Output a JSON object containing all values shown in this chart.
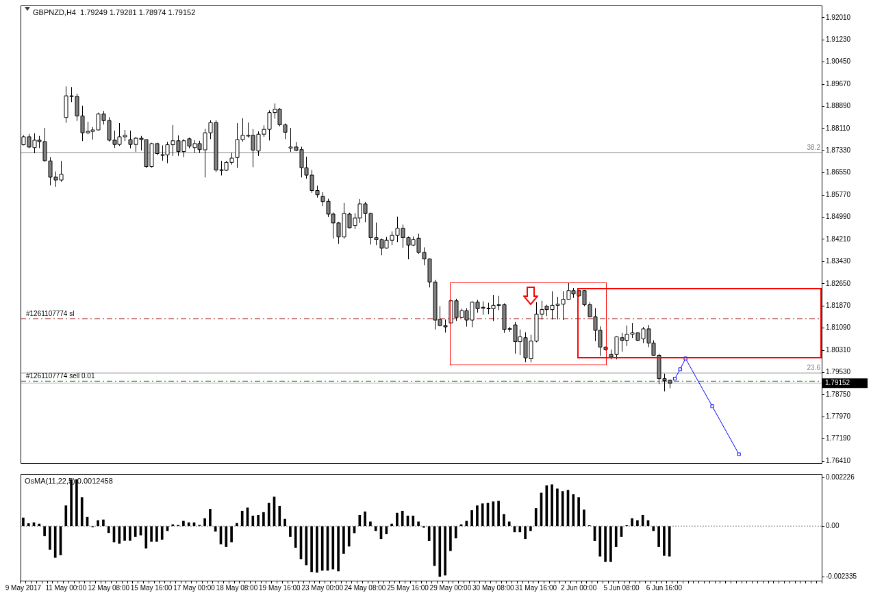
{
  "chart_data": [
    {
      "type": "candlestick",
      "title": "GBPNZD,H4  1.79249 1.79281 1.78974 1.79152",
      "categories": [
        null,
        null,
        null,
        null,
        null,
        null,
        null,
        null,
        null,
        null,
        null,
        null,
        null,
        null,
        null,
        null,
        null,
        null,
        null,
        null,
        null,
        null,
        null,
        null,
        null,
        null,
        null,
        null,
        null,
        null,
        null,
        null,
        null,
        null,
        null,
        null,
        null,
        null,
        null,
        null,
        null,
        null,
        null,
        null,
        null,
        null,
        null,
        null,
        null,
        null,
        null,
        null,
        null,
        null,
        null,
        null,
        null,
        null,
        null,
        null,
        null,
        null,
        null,
        null,
        null,
        null,
        null,
        null,
        null,
        null,
        null,
        null,
        null,
        null,
        null,
        null,
        null,
        null,
        null,
        null,
        null,
        null,
        null,
        null,
        null,
        null,
        null,
        null,
        null,
        null,
        null,
        null,
        null,
        null,
        null,
        null,
        null,
        null,
        null,
        null,
        null,
        null,
        null,
        null,
        null,
        null,
        null,
        null,
        null,
        null,
        null,
        null,
        null,
        null,
        null,
        null,
        null,
        null,
        null,
        null,
        null,
        null,
        null,
        null,
        null,
        null,
        null,
        null,
        null,
        null,
        null,
        null,
        null,
        null,
        null,
        null,
        null,
        null,
        null,
        null,
        null,
        null,
        null,
        null,
        null,
        null,
        null,
        null,
        null,
        null
      ],
      "ohlc": [
        [
          1.8754,
          1.8787,
          1.8752,
          1.8782
        ],
        [
          1.8782,
          1.8792,
          1.8742,
          1.8746
        ],
        [
          1.8744,
          1.8794,
          1.8724,
          1.877
        ],
        [
          1.877,
          1.8785,
          1.8742,
          1.8765
        ],
        [
          1.8765,
          1.8813,
          1.8694,
          1.8698
        ],
        [
          1.8697,
          1.871,
          1.8611,
          1.864
        ],
        [
          1.864,
          1.866,
          1.8606,
          1.863
        ],
        [
          1.863,
          1.8697,
          1.8624,
          1.865
        ],
        [
          1.885,
          1.8959,
          1.8831,
          1.8926
        ],
        [
          1.8926,
          1.8957,
          1.8904,
          1.8924
        ],
        [
          1.8924,
          1.8934,
          1.8838,
          1.8855
        ],
        [
          1.8855,
          1.8891,
          1.8767,
          1.8796
        ],
        [
          1.8796,
          1.8835,
          1.8791,
          1.8801
        ],
        [
          1.8801,
          1.8816,
          1.8772,
          1.8806
        ],
        [
          1.8806,
          1.8867,
          1.8805,
          1.8862
        ],
        [
          1.8862,
          1.8873,
          1.8825,
          1.8839
        ],
        [
          1.8839,
          1.8851,
          1.8765,
          1.877
        ],
        [
          1.877,
          1.8804,
          1.8743,
          1.8755
        ],
        [
          1.8755,
          1.883,
          1.875,
          1.8782
        ],
        [
          1.8782,
          1.8806,
          1.8767,
          1.8787
        ],
        [
          1.8772,
          1.8804,
          1.8741,
          1.8755
        ],
        [
          1.8755,
          1.8782,
          1.8729,
          1.8777
        ],
        [
          1.8777,
          1.8785,
          1.8734,
          1.8772
        ],
        [
          1.8772,
          1.8772,
          1.8672,
          1.8677
        ],
        [
          1.8677,
          1.8761,
          1.8674,
          1.8758
        ],
        [
          1.8758,
          1.8761,
          1.8717,
          1.8723
        ],
        [
          1.8717,
          1.8752,
          1.8698,
          1.8719
        ],
        [
          1.8718,
          1.8764,
          1.8689,
          1.8754
        ],
        [
          1.8754,
          1.8823,
          1.8715,
          1.8768
        ],
        [
          1.8768,
          1.8787,
          1.8715,
          1.873
        ],
        [
          1.873,
          1.8774,
          1.871,
          1.8768
        ],
        [
          1.8775,
          1.8779,
          1.8741,
          1.8749
        ],
        [
          1.8744,
          1.877,
          1.8725,
          1.8758
        ],
        [
          1.8758,
          1.8768,
          1.8725,
          1.8737
        ],
        [
          1.8736,
          1.881,
          1.8639,
          1.8796
        ],
        [
          1.8796,
          1.884,
          1.8774,
          1.8832
        ],
        [
          1.8832,
          1.884,
          1.8658,
          1.8665
        ],
        [
          1.8666,
          1.8697,
          1.8646,
          1.8664
        ],
        [
          1.8664,
          1.8697,
          1.8662,
          1.8692
        ],
        [
          1.8692,
          1.8726,
          1.8684,
          1.8707
        ],
        [
          1.8709,
          1.883,
          1.8672,
          1.8772
        ],
        [
          1.8772,
          1.8847,
          1.8765,
          1.8787
        ],
        [
          1.8786,
          1.8832,
          1.8779,
          1.8787
        ],
        [
          1.8787,
          1.8809,
          1.8675,
          1.8735
        ],
        [
          1.8732,
          1.8801,
          1.8715,
          1.8791
        ],
        [
          1.8791,
          1.8822,
          1.8782,
          1.8808
        ],
        [
          1.8808,
          1.8875,
          1.8769,
          1.8867
        ],
        [
          1.8867,
          1.8899,
          1.8846,
          1.8879
        ],
        [
          1.8879,
          1.8883,
          1.8819,
          1.8824
        ],
        [
          1.8824,
          1.8829,
          1.8774,
          1.8798
        ],
        [
          1.8742,
          1.8813,
          1.8729,
          1.8746
        ],
        [
          1.8746,
          1.8763,
          1.8731,
          1.8734
        ],
        [
          1.8737,
          1.8747,
          1.8639,
          1.8673
        ],
        [
          1.8673,
          1.8712,
          1.8634,
          1.8647
        ],
        [
          1.8647,
          1.8665,
          1.8585,
          1.8593
        ],
        [
          1.8593,
          1.861,
          1.8568,
          1.8578
        ],
        [
          1.8572,
          1.8587,
          1.8538,
          1.8554
        ],
        [
          1.8555,
          1.8564,
          1.85,
          1.851
        ],
        [
          1.851,
          1.8516,
          1.8424,
          1.8479
        ],
        [
          1.8479,
          1.8482,
          1.8405,
          1.843
        ],
        [
          1.843,
          1.8549,
          1.8424,
          1.8512
        ],
        [
          1.851,
          1.8515,
          1.846,
          1.8462
        ],
        [
          1.847,
          1.8513,
          1.8457,
          1.8496
        ],
        [
          1.8496,
          1.8563,
          1.8479,
          1.8546
        ],
        [
          1.8546,
          1.8553,
          1.8481,
          1.8512
        ],
        [
          1.8512,
          1.8515,
          1.8403,
          1.8427
        ],
        [
          1.8427,
          1.848,
          1.8401,
          1.842
        ],
        [
          1.842,
          1.8424,
          1.8365,
          1.839
        ],
        [
          1.839,
          1.843,
          1.8389,
          1.8418
        ],
        [
          1.8418,
          1.8449,
          1.8401,
          1.8435
        ],
        [
          1.8435,
          1.8501,
          1.8411,
          1.846
        ],
        [
          1.846,
          1.8473,
          1.8391,
          1.8427
        ],
        [
          1.8427,
          1.8431,
          1.8351,
          1.8401
        ],
        [
          1.8401,
          1.8431,
          1.8397,
          1.842
        ],
        [
          1.8425,
          1.8441,
          1.837,
          1.8375
        ],
        [
          1.8375,
          1.8393,
          1.833,
          1.8352
        ],
        [
          1.8352,
          1.8354,
          1.8252,
          1.8271
        ],
        [
          1.8271,
          1.8279,
          1.8104,
          1.8137
        ],
        [
          1.8139,
          1.8186,
          1.8115,
          1.8118
        ],
        [
          1.8118,
          1.8139,
          1.8093,
          1.8113
        ],
        [
          1.8127,
          1.8208,
          1.8126,
          1.8205
        ],
        [
          1.8205,
          1.8212,
          1.8134,
          1.8146
        ],
        [
          1.8146,
          1.8177,
          1.8144,
          1.817
        ],
        [
          1.817,
          1.8179,
          1.8114,
          1.8137
        ],
        [
          1.8137,
          1.8203,
          1.8112,
          1.82
        ],
        [
          1.82,
          1.8208,
          1.8163,
          1.8177
        ],
        [
          1.8182,
          1.8203,
          1.8156,
          1.8179
        ],
        [
          1.8178,
          1.8198,
          1.8158,
          1.8179
        ],
        [
          1.8177,
          1.8226,
          1.8134,
          1.8189
        ],
        [
          1.8191,
          1.8222,
          1.8172,
          1.8189
        ],
        [
          1.8191,
          1.8196,
          1.8092,
          1.8104
        ],
        [
          1.8107,
          1.8113,
          1.8096,
          1.8105
        ],
        [
          1.812,
          1.813,
          1.8019,
          1.8061
        ],
        [
          1.8061,
          1.8104,
          1.8014,
          1.8078
        ],
        [
          1.8075,
          1.8094,
          1.7989,
          1.8004
        ],
        [
          1.8001,
          1.8085,
          1.7989,
          1.8063
        ],
        [
          1.8063,
          1.82,
          1.8059,
          1.8158
        ],
        [
          1.8158,
          1.8205,
          1.8139,
          1.8174
        ],
        [
          1.8186,
          1.8191,
          1.8151,
          1.8174
        ],
        [
          1.8174,
          1.8238,
          1.8139,
          1.8189
        ],
        [
          1.8189,
          1.8219,
          1.8139,
          1.8193
        ],
        [
          1.8193,
          1.8238,
          1.8137,
          1.821
        ],
        [
          1.821,
          1.8267,
          1.821,
          1.8241
        ],
        [
          1.8241,
          1.825,
          1.8215,
          1.8229
        ],
        [
          1.8241,
          1.8243,
          1.8219,
          1.8222
        ],
        [
          1.8241,
          1.8243,
          1.8186,
          1.8191
        ],
        [
          1.8191,
          1.82,
          1.8148,
          1.8149
        ],
        [
          1.8149,
          1.8179,
          1.8063,
          1.8101
        ],
        [
          1.8101,
          1.8115,
          1.8011,
          1.8042
        ],
        [
          1.8042,
          1.8044,
          1.803,
          1.8033
        ],
        [
          1.8016,
          1.8033,
          1.7999,
          1.8007
        ],
        [
          1.8016,
          1.808,
          1.7999,
          1.8078
        ],
        [
          1.8075,
          1.8092,
          1.8026,
          1.8066
        ],
        [
          1.8066,
          1.8118,
          1.8046,
          1.8087
        ],
        [
          1.8087,
          1.8127,
          1.8074,
          1.8092
        ],
        [
          1.8092,
          1.8094,
          1.8063,
          1.8066
        ],
        [
          1.8071,
          1.8113,
          1.8056,
          1.8106
        ],
        [
          1.8106,
          1.812,
          1.8042,
          1.8056
        ],
        [
          1.8056,
          1.8066,
          1.8012,
          1.8013
        ],
        [
          1.8013,
          1.8019,
          1.7912,
          1.7931
        ],
        [
          1.7931,
          1.7948,
          1.7886,
          1.7924
        ],
        [
          1.79249,
          1.79281,
          1.78974,
          1.79152
        ],
        null,
        null,
        null,
        null,
        null,
        null,
        null,
        null,
        null,
        null,
        null,
        null,
        null,
        null,
        null,
        null,
        null,
        null,
        null,
        null,
        null,
        null,
        null,
        null,
        null,
        null,
        null,
        null
      ],
      "colors": [
        "#ffffff",
        "#808080",
        "#ffffff",
        "#808080",
        "#808080",
        "#808080",
        "#808080",
        "#ffffff",
        "#ffffff",
        "#808080",
        "#808080",
        "#808080",
        "#ffffff",
        "#ffffff",
        "#ffffff",
        "#808080",
        "#808080",
        "#808080",
        "#ffffff",
        "#ffffff",
        "#808080",
        "#ffffff",
        "#808080",
        "#808080",
        "#ffffff",
        "#808080",
        "#ffffff",
        "#ffffff",
        "#ffffff",
        "#808080",
        "#ffffff",
        "#808080",
        "#ffffff",
        "#808080",
        "#ffffff",
        "#ffffff",
        "#808080",
        "#808080",
        "#ffffff",
        "#ffffff",
        "#ffffff",
        "#ffffff",
        "#ffffff",
        "#808080",
        "#ffffff",
        "#ffffff",
        "#ffffff",
        "#ffffff",
        "#808080",
        "#808080",
        "#ffffff",
        "#808080",
        "#808080",
        "#808080",
        "#808080",
        "#808080",
        "#808080",
        "#808080",
        "#808080",
        "#808080",
        "#ffffff",
        "#808080",
        "#ffffff",
        "#ffffff",
        "#808080",
        "#808080",
        "#808080",
        "#808080",
        "#ffffff",
        "#ffffff",
        "#ffffff",
        "#808080",
        "#808080",
        "#ffffff",
        "#808080",
        "#808080",
        "#808080",
        "#808080",
        "#808080",
        "#808080",
        "#ffffff",
        "#808080",
        "#ffffff",
        "#808080",
        "#ffffff",
        "#808080",
        "#808080",
        "#ffffff",
        "#ffffff",
        "#808080",
        "#808080",
        "#808080",
        "#808080",
        "#ffffff",
        "#808080",
        "#ffffff",
        "#ffffff",
        "#ffffff",
        "#808080",
        "#ffffff",
        "#ffffff",
        "#ffffff",
        "#ffffff",
        "#808080",
        "#808080",
        "#808080",
        "#808080",
        "#808080",
        "#808080",
        "#808080",
        "#808080",
        "#ffffff",
        "#808080",
        "#ffffff",
        "#ffffff",
        "#808080",
        "#ffffff",
        "#808080",
        "#808080",
        "#808080",
        "#808080",
        "#808080",
        null,
        null,
        null,
        null,
        null,
        null,
        null,
        null,
        null,
        null,
        null,
        null,
        null,
        null,
        null,
        null,
        null,
        null,
        null,
        null,
        null,
        null,
        null,
        null,
        null,
        null,
        null,
        null
      ],
      "series": [
        {
          "type": "line",
          "color": "#0000ff",
          "marker": "square",
          "values": [
            null,
            null,
            null,
            null,
            null,
            null,
            null,
            null,
            null,
            null,
            null,
            null,
            null,
            null,
            null,
            null,
            null,
            null,
            null,
            null,
            null,
            null,
            null,
            null,
            null,
            null,
            null,
            null,
            null,
            null,
            null,
            null,
            null,
            null,
            null,
            null,
            null,
            null,
            null,
            null,
            null,
            null,
            null,
            null,
            null,
            null,
            null,
            null,
            null,
            null,
            null,
            null,
            null,
            null,
            null,
            null,
            null,
            null,
            null,
            null,
            null,
            null,
            null,
            null,
            null,
            null,
            null,
            null,
            null,
            null,
            null,
            null,
            null,
            null,
            null,
            null,
            null,
            null,
            null,
            null,
            null,
            null,
            null,
            null,
            null,
            null,
            null,
            null,
            null,
            null,
            null,
            null,
            null,
            null,
            null,
            null,
            null,
            null,
            null,
            null,
            null,
            null,
            null,
            null,
            null,
            null,
            null,
            null,
            null,
            null,
            null,
            null,
            null,
            null,
            null,
            null,
            null,
            null,
            null,
            null,
            null,
            null,
            1.7931,
            1.7964,
            1.8002,
            null,
            null,
            null,
            null,
            1.7834,
            null,
            null,
            null,
            null,
            1.7665,
            null,
            null,
            null,
            null,
            null,
            null,
            null,
            null,
            null,
            null,
            null,
            null,
            null,
            null,
            null
          ]
        }
      ],
      "ylim": [
        1.7634,
        1.9244
      ],
      "yticks": [
        {
          "value": 1.9201,
          "label": "1.92010"
        },
        {
          "value": 1.9123,
          "label": "1.91230"
        },
        {
          "value": 1.9045,
          "label": "1.90450"
        },
        {
          "value": 1.8967,
          "label": "1.89670"
        },
        {
          "value": 1.8889,
          "label": "1.88890"
        },
        {
          "value": 1.8811,
          "label": "1.88110"
        },
        {
          "value": 1.8733,
          "label": "1.87330"
        },
        {
          "value": 1.8655,
          "label": "1.86550"
        },
        {
          "value": 1.8577,
          "label": "1.85770"
        },
        {
          "value": 1.8499,
          "label": "1.84990"
        },
        {
          "value": 1.8421,
          "label": "1.84210"
        },
        {
          "value": 1.8343,
          "label": "1.83430"
        },
        {
          "value": 1.8265,
          "label": "1.82650"
        },
        {
          "value": 1.8187,
          "label": "1.81870"
        },
        {
          "value": 1.8109,
          "label": "1.81090"
        },
        {
          "value": 1.8031,
          "label": "1.80310"
        },
        {
          "value": 1.7953,
          "label": "1.79530"
        },
        {
          "value": 1.7875,
          "label": "1.78750"
        },
        {
          "value": 1.7797,
          "label": "1.77970"
        },
        {
          "value": 1.7719,
          "label": "1.77190"
        },
        {
          "value": 1.7641,
          "label": "1.76410"
        }
      ],
      "tick_labels": "y",
      "annotations": [
        {
          "text": "38.2",
          "y": 1.8726
        },
        {
          "text": "23.6",
          "y": 1.7951
        }
      ],
      "ref_lines": [
        {
          "axis": "y",
          "value": 1.8726,
          "color": "#808080",
          "line_style": "solid"
        },
        {
          "axis": "y",
          "value": 1.7951,
          "color": "#808080",
          "line_style": "solid"
        },
        {
          "axis": "y",
          "value": 1.8142,
          "label": "#1261107774 sl",
          "color": "#a52a2a",
          "line_style": "dashed"
        },
        {
          "axis": "y",
          "value": 1.7922,
          "label": "#1261107774 sell 0.01",
          "color": "#008000",
          "line_style": "dashed"
        },
        {
          "axis": "y",
          "value": 1.79152,
          "label": "1.79152",
          "color": "#c0c0c0",
          "line_style": "solid"
        }
      ]
    },
    {
      "type": "bar",
      "title": "OsMA(11,22,5) 0.0012458",
      "color": "#000000",
      "categories": [
        "9 May 2017",
        null,
        null,
        null,
        null,
        null,
        null,
        null,
        "11 May 00:00",
        null,
        null,
        null,
        null,
        null,
        null,
        null,
        "12 May 08:00",
        null,
        null,
        null,
        null,
        null,
        null,
        null,
        "15 May 16:00",
        null,
        null,
        null,
        null,
        null,
        null,
        null,
        "17 May 00:00",
        null,
        null,
        null,
        null,
        null,
        null,
        null,
        "18 May 08:00",
        null,
        null,
        null,
        null,
        null,
        null,
        null,
        "19 May 16:00",
        null,
        null,
        null,
        null,
        null,
        null,
        null,
        "23 May 00:00",
        null,
        null,
        null,
        null,
        null,
        null,
        null,
        "24 May 08:00",
        null,
        null,
        null,
        null,
        null,
        null,
        null,
        "25 May 16:00",
        null,
        null,
        null,
        null,
        null,
        null,
        null,
        "29 May 00:00",
        null,
        null,
        null,
        null,
        null,
        null,
        null,
        "30 May 08:00",
        null,
        null,
        null,
        null,
        null,
        null,
        null,
        "31 May 16:00",
        null,
        null,
        null,
        null,
        null,
        null,
        null,
        "2 Jun 00:00",
        null,
        null,
        null,
        null,
        null,
        null,
        null,
        "5 Jun 08:00",
        null,
        null,
        null,
        null,
        null,
        null,
        null,
        "6 Jun 16:00",
        null,
        null,
        null,
        null,
        null,
        null,
        null,
        null,
        null,
        null,
        null,
        null,
        null,
        null,
        null,
        null,
        null,
        null,
        null,
        null,
        null,
        null,
        null,
        null,
        null,
        null,
        null,
        null,
        null
      ],
      "values": [
        0.00038,
        0.00012,
        0.00016,
        0.0001,
        -0.00045,
        -0.00107,
        -0.00144,
        -0.00132,
        0.00094,
        0.00214,
        0.00214,
        0.00131,
        0.00041,
        -4e-05,
        0.00026,
        0.00029,
        -0.0003,
        -0.00073,
        -0.00079,
        -0.00066,
        -0.00066,
        -0.00048,
        -0.00041,
        -0.00101,
        -0.0007,
        -0.0007,
        -0.00061,
        -0.00021,
        7e-05,
        4e-05,
        0.00023,
        0.00016,
        0.00016,
        4e-05,
        0.00035,
        0.00078,
        -0.00024,
        -0.00082,
        -0.00095,
        -0.00073,
        0.00013,
        0.00069,
        0.00084,
        0.00047,
        0.0005,
        0.00063,
        0.00106,
        0.00134,
        0.00091,
        0.00032,
        -0.00048,
        -0.00098,
        -0.0015,
        -0.00178,
        -0.00209,
        -0.00212,
        -0.00203,
        -0.00203,
        -0.00197,
        -0.00206,
        -0.00126,
        -0.00092,
        -0.00031,
        0.0005,
        0.00066,
        0.0002,
        -0.00021,
        -0.00058,
        -0.00036,
        0.0001,
        0.0006,
        0.00069,
        0.00047,
        0.00047,
        0.0002,
        -6e-05,
        -0.00067,
        -0.00181,
        -0.00231,
        -0.00225,
        -0.00113,
        -0.00055,
        7e-05,
        0.00023,
        0.00072,
        0.00094,
        0.00103,
        0.00106,
        0.00112,
        0.00115,
        0.00054,
        0.0002,
        -0.00027,
        -0.00027,
        -0.00058,
        -0.00021,
        0.00081,
        0.00152,
        0.00186,
        0.0019,
        0.00171,
        0.00159,
        0.00165,
        0.00146,
        0.00131,
        0.00075,
        3e-05,
        -0.00067,
        -0.00138,
        -0.00163,
        -0.00163,
        -0.00095,
        -0.00048,
        3e-05,
        0.00035,
        0.00026,
        0.0005,
        0.00026,
        -0.00021,
        -0.00095,
        -0.00135,
        -0.00138,
        null,
        null,
        null,
        null,
        null,
        null,
        null,
        null,
        null,
        null,
        null,
        null,
        null,
        null,
        null,
        null,
        null,
        null,
        null,
        null,
        null,
        null,
        null,
        null,
        null,
        null,
        null,
        null
      ],
      "ylim": [
        -0.0025,
        0.00239
      ],
      "yticks": [
        0.002226,
        {
          "value": 0,
          "label": "0.00"
        },
        -0.002335
      ],
      "ref_lines": [
        {
          "axis": "y",
          "value": 0,
          "color": "#808080",
          "line_style": "dotted"
        }
      ]
    }
  ]
}
